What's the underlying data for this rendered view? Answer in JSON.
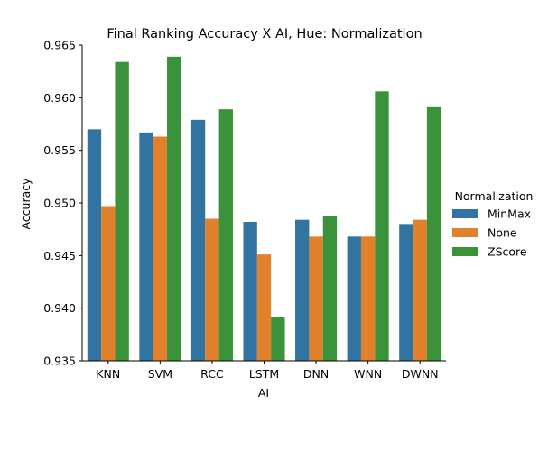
{
  "chart_data": {
    "type": "bar",
    "title": "Final Ranking Accuracy X AI, Hue: Normalization",
    "xlabel": "AI",
    "ylabel": "Accuracy",
    "categories": [
      "KNN",
      "SVM",
      "RCC",
      "LSTM",
      "DNN",
      "WNN",
      "DWNN"
    ],
    "ylim": [
      0.935,
      0.965
    ],
    "yticks": [
      "0.935",
      "0.940",
      "0.945",
      "0.950",
      "0.955",
      "0.960",
      "0.965"
    ],
    "legend": {
      "title": "Normalization",
      "placement": "right"
    },
    "series": [
      {
        "name": "MinMax",
        "color": "#3274a1",
        "values": [
          0.957,
          0.9567,
          0.9579,
          0.9482,
          0.9484,
          0.9468,
          0.948
        ]
      },
      {
        "name": "None",
        "color": "#e1812c",
        "values": [
          0.9497,
          0.9563,
          0.9485,
          0.9451,
          0.9468,
          0.9468,
          0.9484
        ]
      },
      {
        "name": "ZScore",
        "color": "#3a923a",
        "values": [
          0.9634,
          0.9639,
          0.9589,
          0.9392,
          0.9488,
          0.9606,
          0.9591
        ]
      }
    ],
    "grid": false
  }
}
